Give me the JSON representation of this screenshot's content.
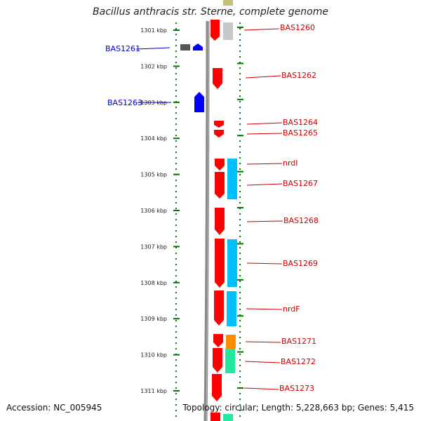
{
  "title": "Bacillus anthracis str. Sterne, complete genome",
  "accession": "Accession: NC_005945",
  "topology": "Topology: circular; Length: 5,228,663 bp; Genes: 5,415",
  "ruler_labels": [
    "1301 kbp",
    "1302 kbp",
    "1303 kbp",
    "1304 kbp",
    "1305 kbp",
    "1306 kbp",
    "1307 kbp",
    "1308 kbp",
    "1309 kbp",
    "1310 kbp",
    "1311 kbp"
  ],
  "genes_left": [
    {
      "name": "BAS1261",
      "color": "#0000cc"
    },
    {
      "name": "BAS1263",
      "color": "#0000cc"
    }
  ],
  "genes_right": [
    {
      "name": "BAS1260",
      "color": "#cc0000"
    },
    {
      "name": "BAS1262",
      "color": "#cc0000"
    },
    {
      "name": "BAS1264",
      "color": "#cc0000"
    },
    {
      "name": "BAS1265",
      "color": "#cc0000"
    },
    {
      "name": "nrdI",
      "color": "#cc0000"
    },
    {
      "name": "BAS1267",
      "color": "#cc0000"
    },
    {
      "name": "BAS1268",
      "color": "#cc0000"
    },
    {
      "name": "BAS1269",
      "color": "#cc0000"
    },
    {
      "name": "nrdF",
      "color": "#cc0000"
    },
    {
      "name": "BAS1271",
      "color": "#cc0000"
    },
    {
      "name": "BAS1272",
      "color": "#cc0000"
    },
    {
      "name": "BAS1273",
      "color": "#cc0000"
    }
  ],
  "colors": {
    "forward_gene": "#ff0000",
    "reverse_gene": "#0000ff",
    "ruler_tick": "#007700",
    "backbone": "#888888",
    "cog_cyan": "#00bfff",
    "cog_orange": "#ff8c00",
    "cog_green": "#22e8a0",
    "cog_grey": "#c8c8c8",
    "cog_olive": "#c8c078"
  }
}
